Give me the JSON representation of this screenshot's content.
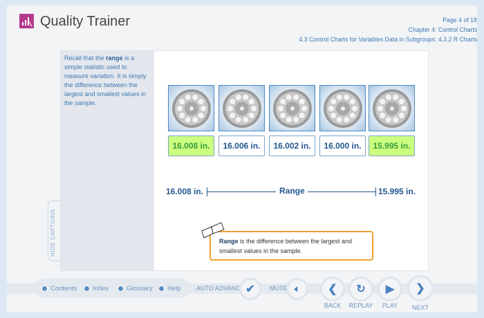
{
  "app": {
    "title": "Quality Trainer",
    "brand_color": "#b43a8c"
  },
  "header": {
    "page": "Page 4 of 18",
    "chapter": "Chapter 4: Control Charts",
    "section": "4.3 Control Charts for Variables Data in Subgroups: 4.3.2 R Charts"
  },
  "caption": {
    "pre": "Recall that the ",
    "term": "range",
    "post": " is a simple statistic used to measure variation. It is simply the difference between the largest and smallest values in the sample."
  },
  "wheels": [
    {
      "value": "16.008 in.",
      "highlight": true
    },
    {
      "value": "16.006 in.",
      "highlight": false
    },
    {
      "value": "16.002 in.",
      "highlight": false
    },
    {
      "value": "16.000 in.",
      "highlight": false
    },
    {
      "value": "15.995 in.",
      "highlight": true
    }
  ],
  "range": {
    "left": "16.008 in.",
    "label": "Range",
    "right": "15.995 in."
  },
  "definition": {
    "term": "Range",
    "text": " is the difference between the largest and smallest values in the sample."
  },
  "hide_captions": "HIDE CAPTIONS",
  "nav": {
    "links": [
      "Contents",
      "Index",
      "Glossary",
      "Help"
    ],
    "auto_advance": "AUTO ADVANCE",
    "mute": "MUTE",
    "back": "BACK",
    "replay": "REPLAY",
    "play": "PLAY",
    "next": "NEXT"
  }
}
